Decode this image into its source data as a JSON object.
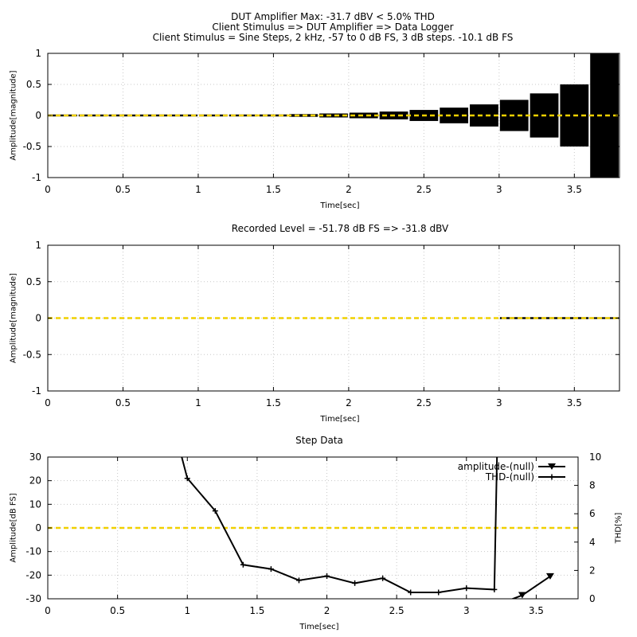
{
  "header": {
    "line1": "DUT Amplifier Max: -31.7 dBV < 5.0% THD",
    "line2": "Client Stimulus => DUT Amplifier => Data Logger",
    "line3": "Client Stimulus = Sine Steps, 2 kHz, -57 to 0 dB FS, 3 dB steps. -10.1 dB FS"
  },
  "colors": {
    "signal": "#000000",
    "reference_line": "#f0d000",
    "grid": "#c8c8c8"
  },
  "chart_data": [
    {
      "type": "line",
      "title": "",
      "xlabel": "Time[sec]",
      "ylabel": "Amplitude[magnitude]",
      "xlim": [
        0,
        3.8
      ],
      "ylim": [
        -1,
        1
      ],
      "xticks": [
        "0",
        "0.5",
        "1",
        "1.5",
        "2",
        "2.5",
        "3",
        "3.5"
      ],
      "yticks": [
        "1",
        "0.5",
        "0",
        "-0.5",
        "-1"
      ],
      "grid": true,
      "reference_y": 0,
      "bursts": [
        {
          "start": 0.0,
          "end": 0.2,
          "amp": 0.0014
        },
        {
          "start": 0.2,
          "end": 0.4,
          "amp": 0.002
        },
        {
          "start": 0.4,
          "end": 0.6,
          "amp": 0.0028
        },
        {
          "start": 0.6,
          "end": 0.8,
          "amp": 0.004
        },
        {
          "start": 0.8,
          "end": 1.0,
          "amp": 0.0056
        },
        {
          "start": 1.0,
          "end": 1.2,
          "amp": 0.0079
        },
        {
          "start": 1.2,
          "end": 1.4,
          "amp": 0.011
        },
        {
          "start": 1.4,
          "end": 1.6,
          "amp": 0.016
        },
        {
          "start": 1.6,
          "end": 1.8,
          "amp": 0.022
        },
        {
          "start": 1.8,
          "end": 2.0,
          "amp": 0.032
        },
        {
          "start": 2.0,
          "end": 2.2,
          "amp": 0.045
        },
        {
          "start": 2.2,
          "end": 2.4,
          "amp": 0.063
        },
        {
          "start": 2.4,
          "end": 2.6,
          "amp": 0.089
        },
        {
          "start": 2.6,
          "end": 2.8,
          "amp": 0.126
        },
        {
          "start": 2.8,
          "end": 3.0,
          "amp": 0.178
        },
        {
          "start": 3.0,
          "end": 3.2,
          "amp": 0.251
        },
        {
          "start": 3.2,
          "end": 3.4,
          "amp": 0.355
        },
        {
          "start": 3.4,
          "end": 3.6,
          "amp": 0.5
        },
        {
          "start": 3.6,
          "end": 3.8,
          "amp": 1.0
        }
      ]
    },
    {
      "type": "line",
      "title": "Recorded Level = -51.78 dB FS  => -31.8 dBV",
      "xlabel": "Time[sec]",
      "ylabel": "Amplitude[magnitude]",
      "xlim": [
        0,
        3.8
      ],
      "ylim": [
        -1,
        1
      ],
      "xticks": [
        "0",
        "0.5",
        "1",
        "1.5",
        "2",
        "2.5",
        "3",
        "3.5"
      ],
      "yticks": [
        "1",
        "0.5",
        "0",
        "-0.5",
        "-1"
      ],
      "grid": true,
      "reference_y": 0,
      "bursts": [
        {
          "start": 3.0,
          "end": 3.2,
          "amp": 0.003
        },
        {
          "start": 3.2,
          "end": 3.4,
          "amp": 0.004
        },
        {
          "start": 3.4,
          "end": 3.6,
          "amp": 0.006
        },
        {
          "start": 3.6,
          "end": 3.8,
          "amp": 0.012
        }
      ]
    },
    {
      "type": "line",
      "title": "Step Data",
      "xlabel": "Time[sec]",
      "ylabel": "Amplitude[dB FS]",
      "y2label": "THD[%]",
      "xlim": [
        0,
        3.8
      ],
      "ylim": [
        -30,
        30
      ],
      "y2lim": [
        0,
        10
      ],
      "xticks": [
        "0",
        "0.5",
        "1",
        "1.5",
        "2",
        "2.5",
        "3",
        "3.5"
      ],
      "yticks": [
        "30",
        "20",
        "10",
        "0",
        "-10",
        "-20",
        "-30"
      ],
      "y2ticks": [
        "10",
        "8",
        "6",
        "4",
        "2",
        "0"
      ],
      "grid": true,
      "reference_y": 0,
      "legend_position": "top-right",
      "series": [
        {
          "name": "amplitude-(null)",
          "axis": "left",
          "marker": "triangle-down",
          "x": [
            3.2,
            3.4,
            3.6
          ],
          "y": [
            -33,
            -28.5,
            -20.5
          ]
        },
        {
          "name": "THD-(null)",
          "axis": "right",
          "marker": "plus",
          "x": [
            0.8,
            1.0,
            1.2,
            1.4,
            1.6,
            1.8,
            2.0,
            2.2,
            2.4,
            2.6,
            2.8,
            3.0,
            3.2,
            3.22
          ],
          "y": [
            16,
            8.5,
            6.2,
            2.4,
            2.1,
            1.3,
            1.6,
            1.1,
            1.45,
            0.45,
            0.45,
            0.75,
            0.65,
            10.5
          ]
        }
      ]
    }
  ]
}
